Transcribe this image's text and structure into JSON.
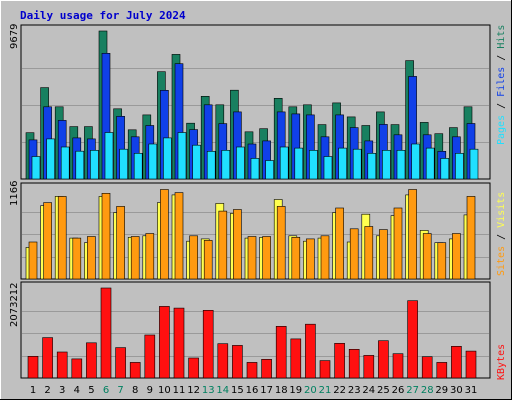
{
  "title": "Daily usage for July 2024",
  "colors": {
    "frame_bg": "#c0c0c0",
    "plot_bg": "#c0c0c0",
    "title": "#0000cc",
    "hits": "#188060",
    "files": "#1040e8",
    "pages": "#20e0ff",
    "visits": "#ffff50",
    "sites": "#ff9a10",
    "kbytes": "#ff1010",
    "weekend_label": "#008060",
    "day_label": "#000000"
  },
  "chart_data": [
    {
      "type": "bar",
      "panel": "hits-files-pages",
      "categories": [
        "1",
        "2",
        "3",
        "4",
        "5",
        "6",
        "7",
        "8",
        "9",
        "10",
        "11",
        "12",
        "13",
        "14",
        "15",
        "16",
        "17",
        "18",
        "19",
        "20",
        "21",
        "22",
        "23",
        "24",
        "25",
        "26",
        "27",
        "28",
        "29",
        "30",
        "31"
      ],
      "ymax_label": "9679",
      "ylim": [
        0,
        9679
      ],
      "weekend_days": [
        "6",
        "7",
        "13",
        "14",
        "20",
        "21",
        "27",
        "28"
      ],
      "series": [
        {
          "name": "Hits",
          "color_key": "hits",
          "values": [
            3030,
            5980,
            4720,
            3430,
            3430,
            9679,
            4590,
            3220,
            4190,
            7020,
            8150,
            3650,
            5410,
            4850,
            5810,
            3090,
            3290,
            5280,
            4720,
            4850,
            3560,
            4980,
            4060,
            3500,
            4390,
            3560,
            7740,
            3700,
            2960,
            3360,
            4720
          ]
        },
        {
          "name": "Files",
          "color_key": "files",
          "values": [
            2560,
            4720,
            3830,
            2690,
            2620,
            8220,
            4100,
            2760,
            3500,
            5800,
            7540,
            3230,
            4850,
            3620,
            4390,
            2290,
            2490,
            4390,
            4260,
            4190,
            2760,
            4190,
            3360,
            2490,
            3570,
            2890,
            6710,
            2890,
            1810,
            2760,
            3630
          ]
        },
        {
          "name": "Pages",
          "color_key": "pages",
          "values": [
            1470,
            2620,
            2090,
            1820,
            1880,
            3040,
            1950,
            1680,
            2290,
            2690,
            3040,
            2210,
            1810,
            1880,
            2090,
            1350,
            1210,
            2090,
            2020,
            1880,
            1470,
            2020,
            1950,
            1680,
            1880,
            1880,
            2290,
            2020,
            1350,
            1680,
            1950
          ]
        }
      ]
    },
    {
      "type": "bar",
      "panel": "visits-sites",
      "categories": [
        "1",
        "2",
        "3",
        "4",
        "5",
        "6",
        "7",
        "8",
        "9",
        "10",
        "11",
        "12",
        "13",
        "14",
        "15",
        "16",
        "17",
        "18",
        "19",
        "20",
        "21",
        "22",
        "23",
        "24",
        "25",
        "26",
        "27",
        "28",
        "29",
        "30",
        "31"
      ],
      "ymax_label": "1166",
      "ylim": [
        0,
        1166
      ],
      "series": [
        {
          "name": "Visits",
          "color_key": "visits",
          "values": [
            410,
            950,
            1070,
            530,
            470,
            1070,
            860,
            540,
            560,
            990,
            1090,
            490,
            520,
            980,
            850,
            530,
            540,
            1030,
            560,
            490,
            530,
            860,
            480,
            840,
            560,
            820,
            1090,
            630,
            470,
            520,
            830
          ]
        },
        {
          "name": "Sites",
          "color_key": "sites",
          "values": [
            480,
            990,
            1070,
            530,
            550,
            1110,
            940,
            550,
            590,
            1160,
            1120,
            560,
            500,
            880,
            900,
            550,
            550,
            940,
            540,
            520,
            560,
            920,
            650,
            680,
            640,
            920,
            1160,
            590,
            470,
            590,
            1070
          ]
        }
      ]
    },
    {
      "type": "bar",
      "panel": "kbytes",
      "categories": [
        "1",
        "2",
        "3",
        "4",
        "5",
        "6",
        "7",
        "8",
        "9",
        "10",
        "11",
        "12",
        "13",
        "14",
        "15",
        "16",
        "17",
        "18",
        "19",
        "20",
        "21",
        "22",
        "23",
        "24",
        "25",
        "26",
        "27",
        "28",
        "29",
        "30",
        "31"
      ],
      "ymax_label": "2073212",
      "ylim": [
        0,
        2073212
      ],
      "series": [
        {
          "name": "KBytes",
          "color_key": "kbytes",
          "values": [
            500000,
            930000,
            600000,
            440000,
            810000,
            2073212,
            700000,
            360000,
            990000,
            1650000,
            1610000,
            460000,
            1560000,
            790000,
            750000,
            360000,
            430000,
            1190000,
            900000,
            1240000,
            400000,
            800000,
            660000,
            520000,
            860000,
            560000,
            1780000,
            490000,
            360000,
            730000,
            620000
          ]
        }
      ]
    }
  ],
  "side_labels": {
    "panel1": [
      {
        "text": "Pages",
        "color_key": "pages"
      },
      {
        "text": " / ",
        "color_key": "day_label"
      },
      {
        "text": "Files",
        "color_key": "files"
      },
      {
        "text": " / ",
        "color_key": "day_label"
      },
      {
        "text": "Hits",
        "color_key": "hits"
      }
    ],
    "panel2": [
      {
        "text": "Sites",
        "color_key": "sites"
      },
      {
        "text": " / ",
        "color_key": "day_label"
      },
      {
        "text": "Visits",
        "color_key": "visits"
      }
    ],
    "panel3": [
      {
        "text": "KBytes",
        "color_key": "kbytes"
      }
    ]
  }
}
